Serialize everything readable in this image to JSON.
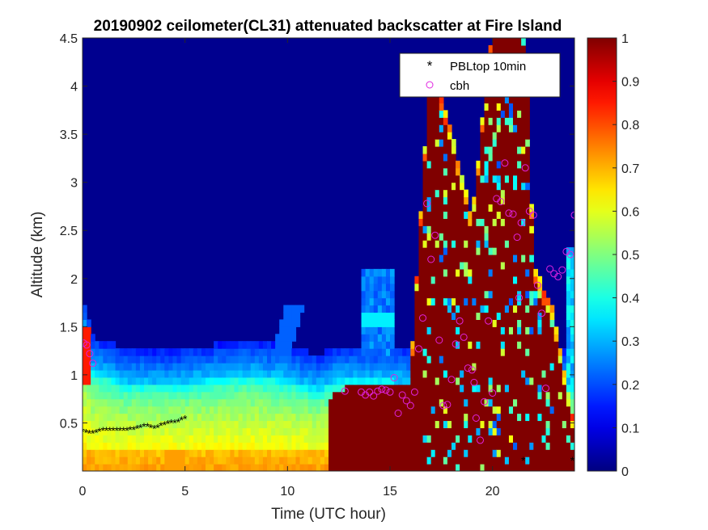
{
  "chart_data": {
    "type": "heatmap",
    "title": "20190902 ceilometer(CL31) attenuated backscatter at Fire Island",
    "xlabel": "Time (UTC hour)",
    "ylabel": "Altitude (km)",
    "xlim": [
      0,
      24
    ],
    "ylim": [
      0,
      4.5
    ],
    "xticks": [
      0,
      5,
      10,
      15,
      20
    ],
    "xtick_labels": [
      "0",
      "5",
      "10",
      "15",
      "20"
    ],
    "yticks": [
      0.5,
      1,
      1.5,
      2,
      2.5,
      3,
      3.5,
      4,
      4.5
    ],
    "ytick_labels": [
      "0.5",
      "1",
      "1.5",
      "2",
      "2.5",
      "3",
      "3.5",
      "4",
      "4.5"
    ],
    "colorbar": {
      "colormap": "jet",
      "range": [
        0,
        1
      ],
      "ticks": [
        0,
        0.1,
        0.2,
        0.3,
        0.4,
        0.5,
        0.6,
        0.7,
        0.8,
        0.9,
        1
      ],
      "tick_labels": [
        "0",
        "0.1",
        "0.2",
        "0.3",
        "0.4",
        "0.5",
        "0.6",
        "0.7",
        "0.8",
        "0.9",
        "1"
      ]
    },
    "legend": {
      "placement": "top-right",
      "entries": [
        {
          "label": "PBLtop 10min",
          "marker": "asterisk",
          "color": "#000000"
        },
        {
          "label": "cbh",
          "marker": "open-circle",
          "color": "#e022e0"
        }
      ]
    },
    "series": [
      {
        "name": "PBLtop 10min",
        "x": [
          0.0,
          0.17,
          0.33,
          0.5,
          0.67,
          0.83,
          1.0,
          1.17,
          1.33,
          1.5,
          1.67,
          1.83,
          2.0,
          2.17,
          2.33,
          2.5,
          2.67,
          2.83,
          3.0,
          3.17,
          3.33,
          3.5,
          3.67,
          3.83,
          4.0,
          4.17,
          4.33,
          4.5,
          4.67,
          4.83,
          5.0,
          21.5,
          23.9
        ],
        "y": [
          0.41,
          0.4,
          0.39,
          0.39,
          0.4,
          0.41,
          0.42,
          0.42,
          0.42,
          0.42,
          0.42,
          0.42,
          0.42,
          0.42,
          0.43,
          0.43,
          0.44,
          0.45,
          0.46,
          0.46,
          0.45,
          0.44,
          0.45,
          0.47,
          0.48,
          0.49,
          0.5,
          0.5,
          0.51,
          0.53,
          0.54,
          0.11,
          0.11
        ]
      },
      {
        "name": "cbh",
        "x": [
          0.05,
          0.2,
          0.35,
          0.5,
          12.8,
          13.6,
          13.8,
          14.0,
          14.2,
          14.4,
          14.6,
          14.8,
          15.0,
          15.2,
          15.4,
          15.6,
          15.8,
          16.0,
          16.2,
          16.4,
          16.6,
          16.8,
          17.0,
          17.2,
          17.4,
          17.6,
          17.8,
          18.0,
          18.2,
          18.4,
          18.6,
          18.8,
          19.0,
          19.2,
          19.4,
          19.6,
          19.8,
          20.0,
          20.2,
          20.4,
          20.6,
          20.8,
          21.0,
          21.2,
          21.4,
          21.6,
          21.8,
          22.0,
          22.2,
          22.4,
          22.6,
          22.8,
          23.0,
          23.2,
          23.4,
          23.6,
          23.8,
          24.0,
          21.3,
          19.1
        ],
        "y": [
          1.33,
          1.31,
          1.22,
          1.12,
          0.83,
          0.82,
          0.79,
          0.82,
          0.78,
          0.83,
          0.85,
          0.84,
          0.82,
          0.97,
          0.6,
          0.79,
          0.73,
          0.68,
          0.82,
          1.27,
          1.59,
          2.78,
          2.2,
          2.45,
          1.36,
          0.68,
          0.69,
          0.95,
          1.32,
          1.56,
          1.39,
          1.07,
          1.05,
          0.55,
          0.32,
          0.72,
          1.56,
          0.81,
          2.83,
          2.8,
          3.2,
          2.68,
          2.67,
          2.43,
          2.58,
          3.15,
          2.7,
          2.66,
          1.93,
          1.64,
          0.86,
          2.1,
          2.05,
          2.02,
          2.09,
          2.28,
          2.25,
          2.66,
          1.8,
          0.92
        ]
      }
    ]
  }
}
